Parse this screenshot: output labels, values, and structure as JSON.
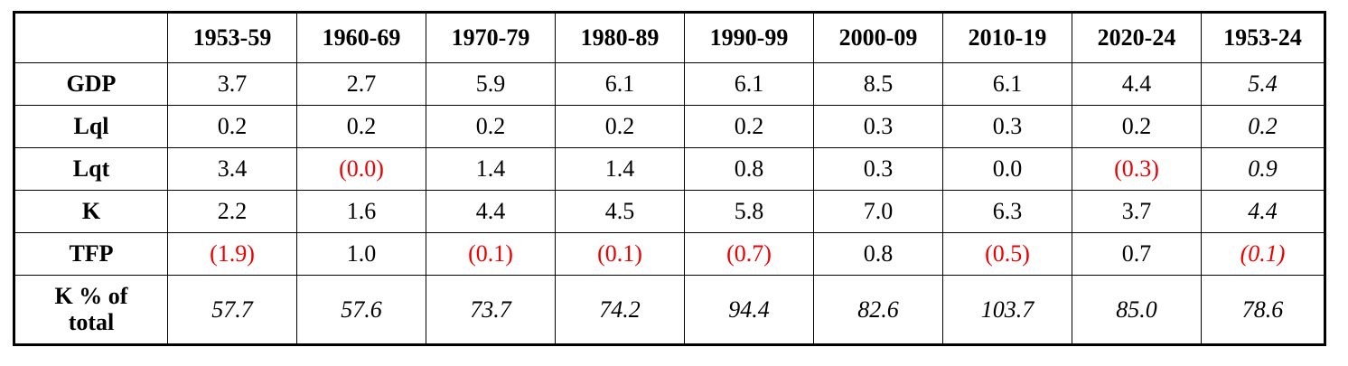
{
  "chart_data": {
    "type": "table",
    "columns": [
      "",
      "1953-59",
      "1960-69",
      "1970-79",
      "1980-89",
      "1990-99",
      "2000-09",
      "2010-19",
      "2020-24",
      "1953-24"
    ],
    "rows": [
      {
        "label": "GDP",
        "cells": [
          "3.7",
          "2.7",
          "5.9",
          "6.1",
          "6.1",
          "8.5",
          "6.1",
          "4.4",
          "5.4"
        ],
        "negative": [
          false,
          false,
          false,
          false,
          false,
          false,
          false,
          false,
          false
        ],
        "italic": [
          false,
          false,
          false,
          false,
          false,
          false,
          false,
          false,
          true
        ]
      },
      {
        "label": "Lql",
        "cells": [
          "0.2",
          "0.2",
          "0.2",
          "0.2",
          "0.2",
          "0.3",
          "0.3",
          "0.2",
          "0.2"
        ],
        "negative": [
          false,
          false,
          false,
          false,
          false,
          false,
          false,
          false,
          false
        ],
        "italic": [
          false,
          false,
          false,
          false,
          false,
          false,
          false,
          false,
          true
        ]
      },
      {
        "label": "Lqt",
        "cells": [
          "3.4",
          "(0.0)",
          "1.4",
          "1.4",
          "0.8",
          "0.3",
          "0.0",
          "(0.3)",
          "0.9"
        ],
        "negative": [
          false,
          true,
          false,
          false,
          false,
          false,
          false,
          true,
          false
        ],
        "italic": [
          false,
          false,
          false,
          false,
          false,
          false,
          false,
          false,
          true
        ]
      },
      {
        "label": "K",
        "cells": [
          "2.2",
          "1.6",
          "4.4",
          "4.5",
          "5.8",
          "7.0",
          "6.3",
          "3.7",
          "4.4"
        ],
        "negative": [
          false,
          false,
          false,
          false,
          false,
          false,
          false,
          false,
          false
        ],
        "italic": [
          false,
          false,
          false,
          false,
          false,
          false,
          false,
          false,
          true
        ]
      },
      {
        "label": "TFP",
        "cells": [
          "(1.9)",
          "1.0",
          "(0.1)",
          "(0.1)",
          "(0.7)",
          "0.8",
          "(0.5)",
          "0.7",
          "(0.1)"
        ],
        "negative": [
          true,
          false,
          true,
          true,
          true,
          false,
          true,
          false,
          true
        ],
        "italic": [
          false,
          false,
          false,
          false,
          false,
          false,
          false,
          false,
          true
        ]
      },
      {
        "label": "K % of total",
        "cells": [
          "57.7",
          "57.6",
          "73.7",
          "74.2",
          "94.4",
          "82.6",
          "103.7",
          "85.0",
          "78.6"
        ],
        "negative": [
          false,
          false,
          false,
          false,
          false,
          false,
          false,
          false,
          false
        ],
        "italic": [
          true,
          true,
          true,
          true,
          true,
          true,
          true,
          true,
          true
        ]
      }
    ],
    "negative_color": "#ee0000",
    "text_color": "#000000",
    "border_color": "#000000"
  }
}
